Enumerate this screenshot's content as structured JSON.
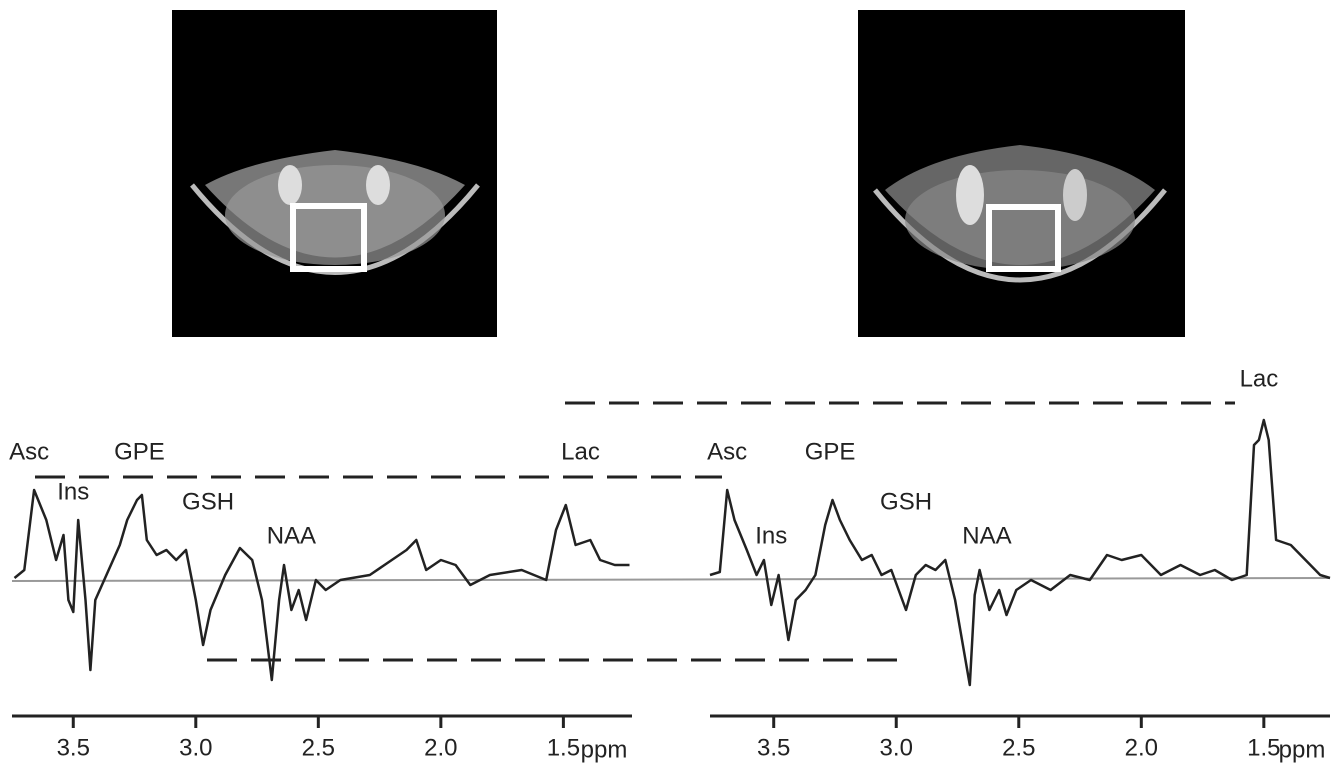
{
  "chart_data": [
    {
      "type": "line",
      "color": "#222222",
      "xlabel": "ppm",
      "xlim": [
        3.75,
        1.22
      ],
      "xticks": [
        3.5,
        {
          "value": 3,
          "label": "3.0"
        },
        2.5,
        {
          "value": 2,
          "label": "2.0"
        },
        1.5
      ],
      "x": [
        3.74,
        3.7,
        3.66,
        3.61,
        3.57,
        3.54,
        3.52,
        3.5,
        3.48,
        3.45,
        3.43,
        3.41,
        3.37,
        3.31,
        3.28,
        3.24,
        3.22,
        3.2,
        3.16,
        3.12,
        3.08,
        3.04,
        3.0,
        2.97,
        2.94,
        2.88,
        2.82,
        2.77,
        2.73,
        2.69,
        2.66,
        2.64,
        2.61,
        2.58,
        2.55,
        2.51,
        2.47,
        2.41,
        2.29,
        2.2,
        2.14,
        2.1,
        2.06,
        2.0,
        1.94,
        1.88,
        1.8,
        1.67,
        1.57,
        1.53,
        1.49,
        1.45,
        1.39,
        1.35,
        1.29,
        1.23
      ],
      "values": [
        4,
        12,
        92,
        62,
        22,
        47,
        -18,
        -30,
        62,
        -18,
        -88,
        -18,
        4,
        37,
        62,
        82,
        87,
        42,
        27,
        32,
        22,
        32,
        -18,
        -63,
        -28,
        7,
        34,
        22,
        -18,
        -98,
        -18,
        17,
        -28,
        -8,
        -38,
        2,
        -8,
        2,
        7,
        22,
        32,
        42,
        12,
        22,
        17,
        -3,
        7,
        12,
        2,
        52,
        77,
        37,
        42,
        22,
        17,
        17
      ],
      "annotations": [
        {
          "text": "Asc",
          "x": 3.68,
          "y": 129
        },
        {
          "text": "Ins",
          "x": 3.5,
          "y": 89
        },
        {
          "text": "GPE",
          "x": 3.23,
          "y": 129
        },
        {
          "text": "GSH",
          "x": 2.95,
          "y": 79
        },
        {
          "text": "NAA",
          "x": 2.61,
          "y": 45
        },
        {
          "text": "Lac",
          "x": 1.43,
          "y": 129
        }
      ]
    },
    {
      "type": "line",
      "color": "#222222",
      "xlabel": "ppm",
      "xlim": [
        3.76,
        1.23
      ],
      "xticks": [
        3.5,
        {
          "value": 3,
          "label": "3.0"
        },
        2.5,
        {
          "value": 2,
          "label": "2.0"
        },
        1.5
      ],
      "x": [
        3.76,
        3.72,
        3.69,
        3.66,
        3.61,
        3.57,
        3.54,
        3.51,
        3.48,
        3.44,
        3.41,
        3.37,
        3.33,
        3.29,
        3.26,
        3.23,
        3.19,
        3.14,
        3.1,
        3.06,
        3.02,
        2.96,
        2.92,
        2.88,
        2.84,
        2.8,
        2.76,
        2.7,
        2.68,
        2.66,
        2.62,
        2.58,
        2.55,
        2.51,
        2.45,
        2.37,
        2.29,
        2.21,
        2.14,
        2.08,
        2.0,
        1.92,
        1.84,
        1.76,
        1.7,
        1.63,
        1.57,
        1.54,
        1.52,
        1.5,
        1.48,
        1.45,
        1.39,
        1.33,
        1.27,
        1.23
      ],
      "values": [
        3,
        6,
        88,
        58,
        28,
        3,
        18,
        -27,
        3,
        -62,
        -22,
        -12,
        3,
        53,
        78,
        58,
        38,
        18,
        23,
        3,
        8,
        -32,
        3,
        13,
        8,
        18,
        -22,
        -107,
        -17,
        8,
        -32,
        -12,
        -37,
        -12,
        -2,
        -12,
        3,
        -2,
        23,
        18,
        23,
        3,
        13,
        3,
        8,
        -2,
        3,
        133,
        138,
        158,
        138,
        38,
        33,
        18,
        3,
        0
      ],
      "annotations": [
        {
          "text": "Asc",
          "x": 3.69,
          "y": 125
        },
        {
          "text": "Ins",
          "x": 3.51,
          "y": 41
        },
        {
          "text": "GPE",
          "x": 3.27,
          "y": 125
        },
        {
          "text": "GSH",
          "x": 2.96,
          "y": 75
        },
        {
          "text": "NAA",
          "x": 2.63,
          "y": 41
        },
        {
          "text": "Lac",
          "x": 1.52,
          "y": 198
        }
      ]
    }
  ]
}
